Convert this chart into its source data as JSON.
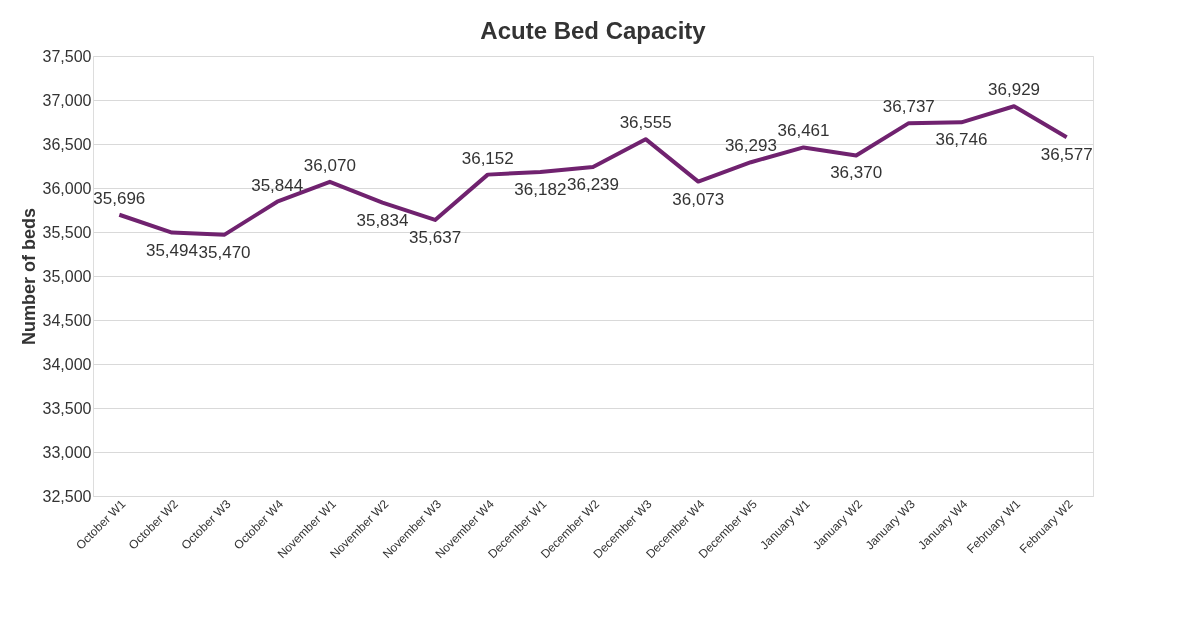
{
  "chart_data": {
    "type": "line",
    "title": "Acute Bed Capacity",
    "ylabel": "Number of beds",
    "categories": [
      "October W1",
      "October W2",
      "October W3",
      "October W4",
      "November W1",
      "November W2",
      "November W3",
      "November W4",
      "December W1",
      "December W2",
      "December W3",
      "December W4",
      "December W5",
      "January W1",
      "January W2",
      "January W3",
      "January W4",
      "February W1",
      "February W2"
    ],
    "series": [
      {
        "color": "#70226f",
        "values": [
          35696,
          35494,
          35470,
          35844,
          36070,
          35834,
          35637,
          36152,
          36182,
          36239,
          36555,
          36073,
          36293,
          36461,
          36370,
          36737,
          36746,
          36929,
          36577
        ],
        "value_labels": [
          "35,696",
          "35,494",
          "35,470",
          "35,844",
          "36,070",
          "35,834",
          "35,637",
          "36,152",
          "36,182",
          "36,239",
          "36,555",
          "36,073",
          "36,293",
          "36,461",
          "36,370",
          "36,737",
          "36,746",
          "36,929",
          "36,577"
        ]
      }
    ],
    "ylim": [
      32500,
      37500
    ],
    "yticks": [
      {
        "value": 32500,
        "label": "32,500"
      },
      {
        "value": 33000,
        "label": "33,000"
      },
      {
        "value": 33500,
        "label": "33,500"
      },
      {
        "value": 34000,
        "label": "34,000"
      },
      {
        "value": 34500,
        "label": "34,500"
      },
      {
        "value": 35000,
        "label": "35,000"
      },
      {
        "value": 35500,
        "label": "35,500"
      },
      {
        "value": 36000,
        "label": "36,000"
      },
      {
        "value": 36500,
        "label": "36,500"
      },
      {
        "value": 37000,
        "label": "37,000"
      },
      {
        "value": 37500,
        "label": "37,500"
      }
    ],
    "grid": "y",
    "marker": "none",
    "line_style": "solid"
  }
}
